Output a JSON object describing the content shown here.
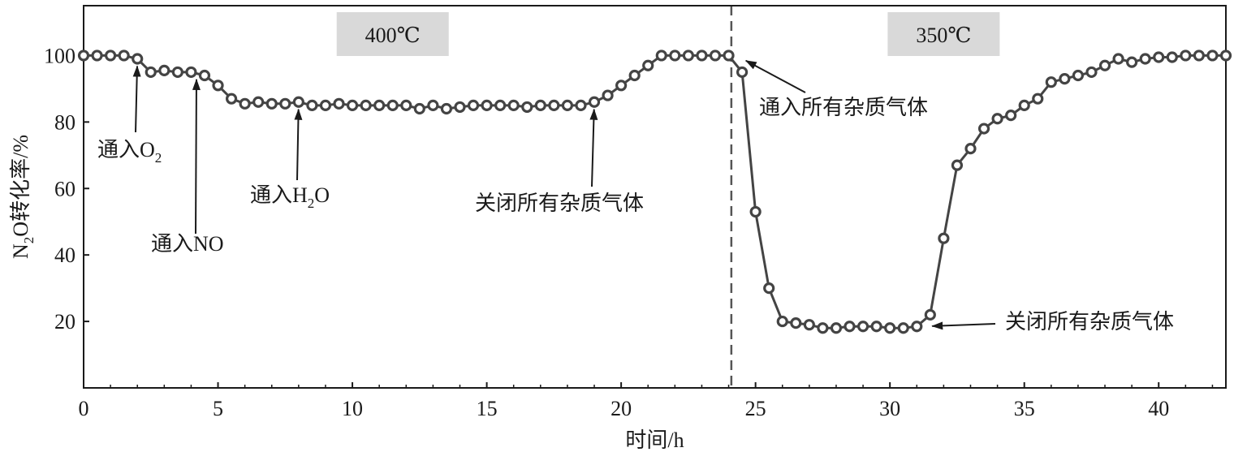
{
  "chart_data": {
    "type": "line",
    "xlabel": "时间/h",
    "ylabel": {
      "pre": "N",
      "sub": "2",
      "post": "O转化率/%"
    },
    "xlim": [
      0,
      42.5
    ],
    "ylim": [
      0,
      115
    ],
    "xticks": [
      0,
      5,
      10,
      15,
      20,
      25,
      30,
      35,
      40
    ],
    "yticks": [
      20,
      40,
      60,
      80,
      100
    ],
    "grid": false,
    "legend": "none",
    "divider_x": 24.1,
    "regions": [
      {
        "label": "400℃",
        "x_center": 11.5
      },
      {
        "label": "350℃",
        "x_center": 32.0
      }
    ],
    "series": [
      {
        "x": [
          0,
          0.5,
          1,
          1.5,
          2,
          2.5,
          3,
          3.5,
          4,
          4.5,
          5,
          5.5,
          6,
          6.5,
          7,
          7.5,
          8,
          8.5,
          9,
          9.5,
          10,
          10.5,
          11,
          11.5,
          12,
          12.5,
          13,
          13.5,
          14,
          14.5,
          15,
          15.5,
          16,
          16.5,
          17,
          17.5,
          18,
          18.5,
          19,
          19.5,
          20,
          20.5,
          21,
          21.5,
          22,
          22.5,
          23,
          23.5,
          24,
          24.5,
          25,
          25.5,
          26,
          26.5,
          27,
          27.5,
          28,
          28.5,
          29,
          29.5,
          30,
          30.5,
          31,
          31.5,
          32,
          32.5,
          33,
          33.5,
          34,
          34.5,
          35,
          35.5,
          36,
          36.5,
          37,
          37.5,
          38,
          38.5,
          39,
          39.5,
          40,
          40.5,
          41,
          41.5,
          42,
          42.5
        ],
        "y": [
          100,
          100,
          100,
          100,
          99,
          95,
          95.5,
          95,
          95,
          94,
          91,
          87,
          85.5,
          86,
          85.5,
          85.5,
          86,
          85,
          85,
          85.5,
          85,
          85,
          85,
          85,
          85,
          84,
          85,
          84,
          84.5,
          85,
          85,
          85,
          85,
          84.5,
          85,
          85,
          85,
          85,
          86,
          88,
          91,
          94,
          97,
          100,
          100,
          100,
          100,
          100,
          100,
          95,
          53,
          30,
          20,
          19.5,
          19,
          18,
          18,
          18.5,
          18.5,
          18.5,
          18,
          18,
          18.5,
          22,
          45,
          67,
          72,
          78,
          81,
          82,
          85,
          87,
          92,
          93,
          94,
          95,
          97,
          99,
          98,
          99,
          99.5,
          99.5,
          100,
          100,
          100,
          100
        ]
      }
    ],
    "annotations": [
      {
        "parts": [
          {
            "t": "通入O"
          },
          {
            "t": "2",
            "sub": true
          }
        ],
        "arrow_to": [
          2.0,
          99
        ]
      },
      {
        "parts": [
          {
            "t": "通入NO"
          }
        ],
        "arrow_to": [
          4.2,
          95
        ]
      },
      {
        "parts": [
          {
            "t": "通入H"
          },
          {
            "t": "2",
            "sub": true
          },
          {
            "t": "O"
          }
        ],
        "arrow_to": [
          8.0,
          86
        ]
      },
      {
        "parts": [
          {
            "t": "关闭所有杂质气体"
          }
        ],
        "arrow_to": [
          19.0,
          86
        ]
      },
      {
        "parts": [
          {
            "t": "通入所有杂质气体"
          }
        ],
        "arrow_to": [
          24.4,
          99.5
        ]
      },
      {
        "parts": [
          {
            "t": "关闭所有杂质气体"
          }
        ],
        "arrow_to": [
          31.3,
          18.5
        ]
      }
    ]
  }
}
